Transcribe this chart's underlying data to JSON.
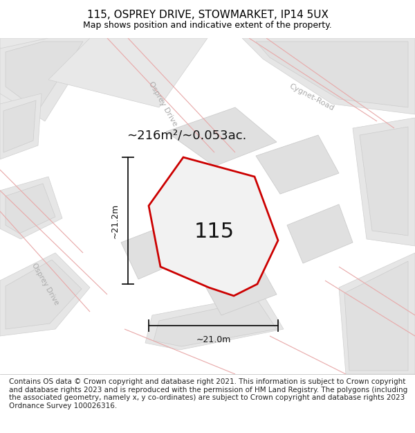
{
  "title": "115, OSPREY DRIVE, STOWMARKET, IP14 5UX",
  "subtitle": "Map shows position and indicative extent of the property.",
  "footer": "Contains OS data © Crown copyright and database right 2021. This information is subject to Crown copyright and database rights 2023 and is reproduced with the permission of HM Land Registry. The polygons (including the associated geometry, namely x, y co-ordinates) are subject to Crown copyright and database rights 2023 Ordnance Survey 100026316.",
  "area_label": "∼216m²/∼0.053ac.",
  "number_label": "115",
  "dim_horizontal": "∼21.0m",
  "dim_vertical": "∼21.2m",
  "map_bg": "#f7f7f7",
  "plot_outline_color": "#cc0000",
  "plot_fill_color": "#f2f2f2",
  "building_fill": "#e0e0e0",
  "building_edge": "#cccccc",
  "road_band_fill": "#e8e8e8",
  "road_band_edge": "#d0d0d0",
  "road_line_color": "#e8a8a8",
  "dim_color": "#111111",
  "street_color": "#aaaaaa",
  "title_fontsize": 11,
  "subtitle_fontsize": 9,
  "footer_fontsize": 7.5,
  "area_fontsize": 13,
  "number_fontsize": 22,
  "dim_fontsize": 9,
  "street_fontsize": 8
}
